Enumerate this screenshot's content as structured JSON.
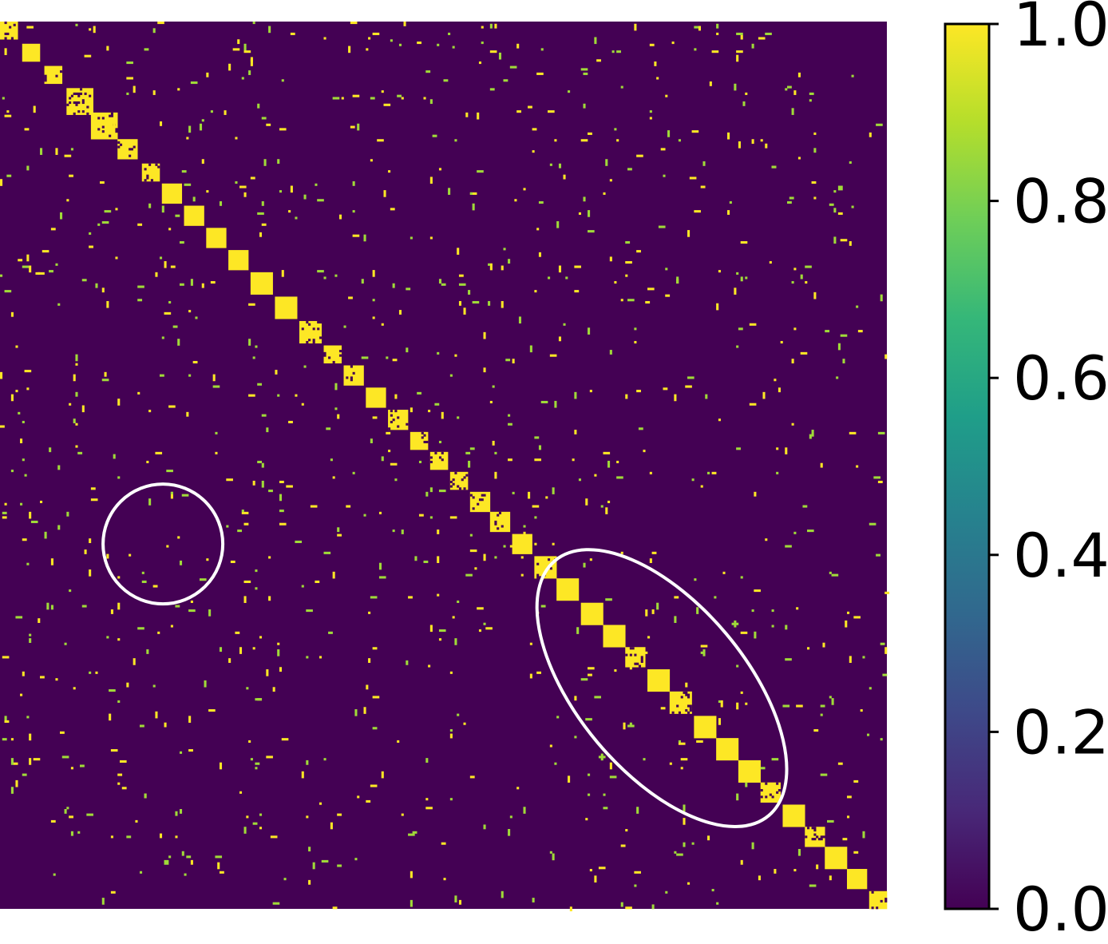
{
  "chart_data": {
    "type": "heatmap",
    "title": "",
    "xlabel": "",
    "ylabel": "",
    "matrix_size": 400,
    "value_range": [
      0.0,
      1.0
    ],
    "colormap": "viridis",
    "colormap_stops": [
      "#440154",
      "#482878",
      "#3e4989",
      "#31688e",
      "#26828e",
      "#1f9e89",
      "#35b779",
      "#6ece58",
      "#b5de2b",
      "#fde725"
    ],
    "cell_colors": {
      "zero": "#440154",
      "one": "#fde725",
      "partial": "#a0da39"
    },
    "diagonal_blocks": [
      {
        "start": 0,
        "size": 8,
        "value": 0.9
      },
      {
        "start": 10,
        "size": 8,
        "value": 1.0
      },
      {
        "start": 20,
        "size": 8,
        "value": 0.9
      },
      {
        "start": 30,
        "size": 12,
        "value": 0.85
      },
      {
        "start": 41,
        "size": 12,
        "value": 0.9
      },
      {
        "start": 53,
        "size": 9,
        "value": 0.9
      },
      {
        "start": 64,
        "size": 8,
        "value": 0.9
      },
      {
        "start": 73,
        "size": 9,
        "value": 1.0
      },
      {
        "start": 83,
        "size": 9,
        "value": 1.0
      },
      {
        "start": 93,
        "size": 9,
        "value": 1.0
      },
      {
        "start": 103,
        "size": 9,
        "value": 1.0
      },
      {
        "start": 113,
        "size": 10,
        "value": 1.0
      },
      {
        "start": 124,
        "size": 10,
        "value": 1.0
      },
      {
        "start": 135,
        "size": 10,
        "value": 0.85
      },
      {
        "start": 146,
        "size": 8,
        "value": 0.9
      },
      {
        "start": 155,
        "size": 9,
        "value": 0.9
      },
      {
        "start": 165,
        "size": 9,
        "value": 1.0
      },
      {
        "start": 175,
        "size": 9,
        "value": 0.9
      },
      {
        "start": 185,
        "size": 8,
        "value": 0.9
      },
      {
        "start": 194,
        "size": 8,
        "value": 0.9
      },
      {
        "start": 203,
        "size": 8,
        "value": 0.9
      },
      {
        "start": 212,
        "size": 9,
        "value": 0.9
      },
      {
        "start": 221,
        "size": 9,
        "value": 0.9
      },
      {
        "start": 231,
        "size": 9,
        "value": 1.0
      },
      {
        "start": 241,
        "size": 10,
        "value": 0.9
      },
      {
        "start": 251,
        "size": 10,
        "value": 1.0
      },
      {
        "start": 262,
        "size": 10,
        "value": 1.0
      },
      {
        "start": 272,
        "size": 10,
        "value": 1.0
      },
      {
        "start": 282,
        "size": 9,
        "value": 0.85
      },
      {
        "start": 292,
        "size": 10,
        "value": 1.0
      },
      {
        "start": 302,
        "size": 10,
        "value": 0.85
      },
      {
        "start": 313,
        "size": 10,
        "value": 1.0
      },
      {
        "start": 323,
        "size": 10,
        "value": 1.0
      },
      {
        "start": 333,
        "size": 10,
        "value": 1.0
      },
      {
        "start": 343,
        "size": 9,
        "value": 0.85
      },
      {
        "start": 353,
        "size": 10,
        "value": 1.0
      },
      {
        "start": 363,
        "size": 9,
        "value": 0.85
      },
      {
        "start": 372,
        "size": 10,
        "value": 1.0
      },
      {
        "start": 382,
        "size": 9,
        "value": 1.0
      },
      {
        "start": 392,
        "size": 8,
        "value": 0.85
      }
    ],
    "colorbar": {
      "ticks": [
        0.0,
        0.2,
        0.4,
        0.6,
        0.8,
        1.0
      ],
      "tick_labels": [
        "0.0",
        "0.2",
        "0.4",
        "0.6",
        "0.8",
        "1.0"
      ]
    },
    "annotations": [
      {
        "shape": "circle",
        "row": 235,
        "col": 73,
        "radius": 27,
        "color": "#ffffff"
      },
      {
        "shape": "ellipse",
        "row": 300,
        "col": 298,
        "rx": 75,
        "ry": 38,
        "rotation_deg": 50,
        "color": "#ffffff"
      }
    ]
  }
}
